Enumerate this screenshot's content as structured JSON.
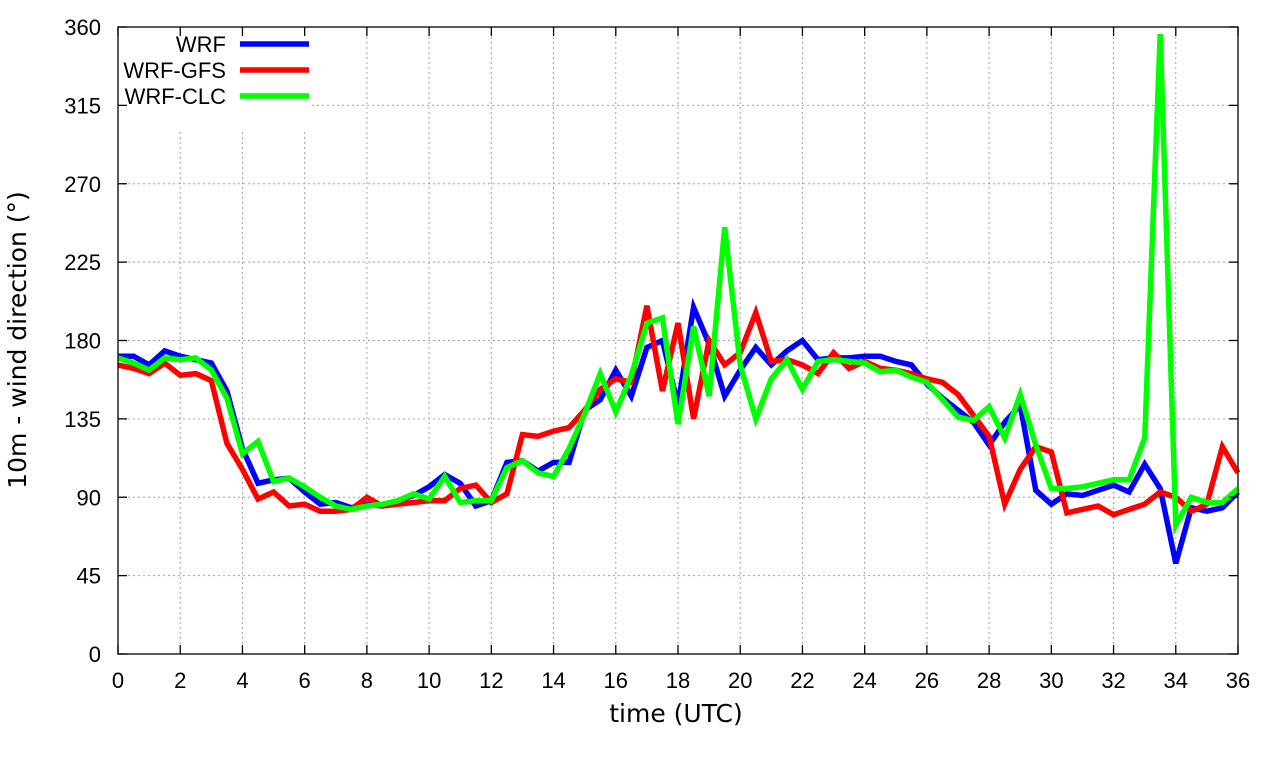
{
  "chart_data": {
    "type": "line",
    "title": "",
    "xlabel": "time (UTC)",
    "ylabel": "10m - wind direction (°)",
    "xlim": [
      0,
      36
    ],
    "ylim": [
      0,
      360
    ],
    "xticks": [
      0,
      2,
      4,
      6,
      8,
      10,
      12,
      14,
      16,
      18,
      20,
      22,
      24,
      26,
      28,
      30,
      32,
      34,
      36
    ],
    "yticks": [
      0,
      45,
      90,
      135,
      180,
      225,
      270,
      315,
      360
    ],
    "grid": true,
    "legend_position": "top-left",
    "series": [
      {
        "name": "WRF",
        "color": "#0000ff",
        "points": [
          [
            0,
            171
          ],
          [
            0.5,
            171
          ],
          [
            1,
            166
          ],
          [
            1.5,
            174
          ],
          [
            2,
            171
          ],
          [
            2.5,
            169
          ],
          [
            3,
            167
          ],
          [
            3.5,
            151
          ],
          [
            4,
            118
          ],
          [
            4.5,
            98
          ],
          [
            5,
            100
          ],
          [
            5.5,
            101
          ],
          [
            6,
            93
          ],
          [
            6.5,
            86
          ],
          [
            7,
            87
          ],
          [
            7.5,
            84
          ],
          [
            8,
            86
          ],
          [
            8.5,
            85
          ],
          [
            9,
            88
          ],
          [
            9.5,
            91
          ],
          [
            10,
            96
          ],
          [
            10.5,
            103
          ],
          [
            11,
            98
          ],
          [
            11.5,
            85
          ],
          [
            12,
            88
          ],
          [
            12.5,
            110
          ],
          [
            13,
            111
          ],
          [
            13.5,
            105
          ],
          [
            14,
            110
          ],
          [
            14.5,
            110
          ],
          [
            15,
            140
          ],
          [
            15.5,
            146
          ],
          [
            16,
            163
          ],
          [
            16.5,
            148
          ],
          [
            17,
            176
          ],
          [
            17.5,
            180
          ],
          [
            18,
            143
          ],
          [
            18.5,
            199
          ],
          [
            19,
            178
          ],
          [
            19.5,
            148
          ],
          [
            20,
            163
          ],
          [
            20.5,
            176
          ],
          [
            21,
            166
          ],
          [
            21.5,
            174
          ],
          [
            22,
            180
          ],
          [
            22.5,
            169
          ],
          [
            23,
            170
          ],
          [
            23.5,
            170
          ],
          [
            24,
            171
          ],
          [
            24.5,
            171
          ],
          [
            25,
            168
          ],
          [
            25.5,
            166
          ],
          [
            26,
            155
          ],
          [
            26.5,
            147
          ],
          [
            27,
            140
          ],
          [
            27.5,
            133
          ],
          [
            28,
            120
          ],
          [
            28.5,
            133
          ],
          [
            29,
            143
          ],
          [
            29.5,
            94
          ],
          [
            30,
            86
          ],
          [
            30.5,
            92
          ],
          [
            31,
            91
          ],
          [
            31.5,
            94
          ],
          [
            32,
            97
          ],
          [
            32.5,
            93
          ],
          [
            33,
            109
          ],
          [
            33.5,
            95
          ],
          [
            34,
            52
          ],
          [
            34.5,
            84
          ],
          [
            35,
            82
          ],
          [
            35.5,
            84
          ],
          [
            36,
            93
          ]
        ]
      },
      {
        "name": "WRF-GFS",
        "color": "#ff0000",
        "points": [
          [
            0,
            166
          ],
          [
            0.5,
            164
          ],
          [
            1,
            161
          ],
          [
            1.5,
            167
          ],
          [
            2,
            160
          ],
          [
            2.5,
            161
          ],
          [
            3,
            157
          ],
          [
            3.5,
            121
          ],
          [
            4,
            106
          ],
          [
            4.5,
            89
          ],
          [
            5,
            93
          ],
          [
            5.5,
            85
          ],
          [
            6,
            86
          ],
          [
            6.5,
            82
          ],
          [
            7,
            82
          ],
          [
            7.5,
            83
          ],
          [
            8,
            90
          ],
          [
            8.5,
            85
          ],
          [
            9,
            86
          ],
          [
            9.5,
            87
          ],
          [
            10,
            88
          ],
          [
            10.5,
            88
          ],
          [
            11,
            95
          ],
          [
            11.5,
            97
          ],
          [
            12,
            87
          ],
          [
            12.5,
            92
          ],
          [
            13,
            126
          ],
          [
            13.5,
            125
          ],
          [
            14,
            128
          ],
          [
            14.5,
            130
          ],
          [
            15,
            140
          ],
          [
            15.5,
            152
          ],
          [
            16,
            158
          ],
          [
            16.5,
            156
          ],
          [
            17,
            200
          ],
          [
            17.5,
            151
          ],
          [
            18,
            190
          ],
          [
            18.5,
            135
          ],
          [
            19,
            180
          ],
          [
            19.5,
            166
          ],
          [
            20,
            173
          ],
          [
            20.5,
            196
          ],
          [
            21,
            168
          ],
          [
            21.5,
            169
          ],
          [
            22,
            166
          ],
          [
            22.5,
            161
          ],
          [
            23,
            173
          ],
          [
            23.5,
            164
          ],
          [
            24,
            168
          ],
          [
            24.5,
            164
          ],
          [
            25,
            163
          ],
          [
            25.5,
            161
          ],
          [
            26,
            158
          ],
          [
            26.5,
            156
          ],
          [
            27,
            149
          ],
          [
            27.5,
            137
          ],
          [
            28,
            125
          ],
          [
            28.5,
            86
          ],
          [
            29,
            106
          ],
          [
            29.5,
            119
          ],
          [
            30,
            116
          ],
          [
            30.5,
            81
          ],
          [
            31,
            83
          ],
          [
            31.5,
            85
          ],
          [
            32,
            80
          ],
          [
            32.5,
            83
          ],
          [
            33,
            86
          ],
          [
            33.5,
            93
          ],
          [
            34,
            90
          ],
          [
            34.5,
            82
          ],
          [
            35,
            86
          ],
          [
            35.5,
            119
          ],
          [
            36,
            104
          ]
        ]
      },
      {
        "name": "WRF-CLC",
        "color": "#00ff00",
        "points": [
          [
            0,
            170
          ],
          [
            0.5,
            167
          ],
          [
            1,
            163
          ],
          [
            1.5,
            170
          ],
          [
            2,
            169
          ],
          [
            2.5,
            170
          ],
          [
            3,
            163
          ],
          [
            3.5,
            147
          ],
          [
            4,
            115
          ],
          [
            4.5,
            122
          ],
          [
            5,
            99
          ],
          [
            5.5,
            101
          ],
          [
            6,
            96
          ],
          [
            6.5,
            90
          ],
          [
            7,
            85
          ],
          [
            7.5,
            83
          ],
          [
            8,
            85
          ],
          [
            8.5,
            86
          ],
          [
            9,
            88
          ],
          [
            9.5,
            92
          ],
          [
            10,
            89
          ],
          [
            10.5,
            102
          ],
          [
            11,
            87
          ],
          [
            11.5,
            88
          ],
          [
            12,
            88
          ],
          [
            12.5,
            107
          ],
          [
            13,
            111
          ],
          [
            13.5,
            104
          ],
          [
            14,
            102
          ],
          [
            14.5,
            118
          ],
          [
            15,
            138
          ],
          [
            15.5,
            161
          ],
          [
            16,
            139
          ],
          [
            16.5,
            160
          ],
          [
            17,
            190
          ],
          [
            17.5,
            193
          ],
          [
            18,
            132
          ],
          [
            18.5,
            188
          ],
          [
            19,
            148
          ],
          [
            19.5,
            245
          ],
          [
            20,
            166
          ],
          [
            20.5,
            135
          ],
          [
            21,
            158
          ],
          [
            21.5,
            169
          ],
          [
            22,
            152
          ],
          [
            22.5,
            168
          ],
          [
            23,
            169
          ],
          [
            23.5,
            168
          ],
          [
            24,
            167
          ],
          [
            24.5,
            162
          ],
          [
            25,
            163
          ],
          [
            25.5,
            159
          ],
          [
            26,
            156
          ],
          [
            26.5,
            146
          ],
          [
            27,
            136
          ],
          [
            27.5,
            134
          ],
          [
            28,
            142
          ],
          [
            28.5,
            124
          ],
          [
            29,
            149
          ],
          [
            29.5,
            120
          ],
          [
            30,
            95
          ],
          [
            30.5,
            95
          ],
          [
            31,
            96
          ],
          [
            31.5,
            98
          ],
          [
            32,
            100
          ],
          [
            32.5,
            100
          ],
          [
            33,
            124
          ],
          [
            33.5,
            356
          ],
          [
            34,
            74
          ],
          [
            34.5,
            90
          ],
          [
            35,
            87
          ],
          [
            35.5,
            87
          ],
          [
            36,
            95
          ]
        ]
      }
    ]
  }
}
